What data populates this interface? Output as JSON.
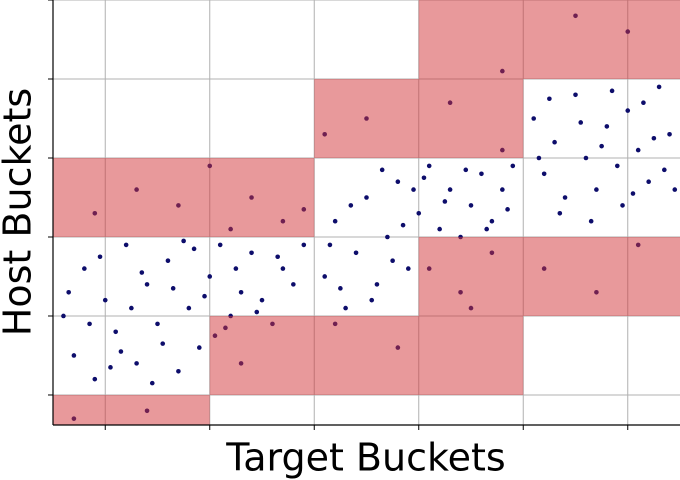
{
  "chart_data": {
    "type": "scatter",
    "xlabel": "Target Buckets",
    "ylabel": "Host Buckets",
    "xlim": [
      0,
      6
    ],
    "ylim": [
      -0.38,
      5
    ],
    "xticks": [
      0.5,
      1.5,
      2.5,
      3.5,
      4.5,
      5.5
    ],
    "yticks": [
      0,
      1,
      2,
      3,
      4,
      5
    ],
    "grid": true,
    "color": "#0d0d6b",
    "region_color": "#d13438",
    "region_opacity": 0.5,
    "regions": [
      {
        "x": [
          0,
          1.5
        ],
        "y": [
          -0.38,
          0
        ]
      },
      {
        "x": [
          1.5,
          4.5
        ],
        "y": [
          0,
          1
        ]
      },
      {
        "x": [
          0,
          2.5
        ],
        "y": [
          2,
          3
        ]
      },
      {
        "x": [
          3.5,
          6
        ],
        "y": [
          1,
          2
        ]
      },
      {
        "x": [
          2.5,
          4.5
        ],
        "y": [
          3,
          4
        ]
      },
      {
        "x": [
          3.5,
          6
        ],
        "y": [
          4,
          5
        ]
      }
    ],
    "x": [
      0.1,
      0.2,
      0.3,
      0.4,
      0.5,
      0.6,
      0.7,
      0.8,
      0.9,
      1.0,
      1.1,
      1.2,
      1.3,
      1.4,
      1.5,
      1.6,
      1.7,
      1.8,
      1.9,
      2.0,
      2.1,
      2.2,
      2.3,
      2.4,
      0.15,
      0.35,
      0.55,
      0.75,
      0.95,
      1.15,
      1.35,
      1.55,
      1.75,
      1.95,
      2.15,
      0.45,
      0.65,
      0.85,
      1.05,
      1.25,
      1.45,
      1.65,
      0.4,
      0.8,
      1.5,
      1.2,
      1.9,
      2.2,
      2.4,
      1.7,
      2.6,
      2.7,
      2.8,
      2.9,
      3.0,
      3.1,
      3.2,
      3.3,
      3.4,
      3.5,
      3.6,
      3.7,
      3.8,
      3.9,
      4.0,
      4.1,
      4.2,
      4.3,
      4.4,
      2.65,
      2.85,
      3.05,
      3.25,
      3.45,
      3.15,
      2.75,
      3.35,
      3.55,
      3.75,
      3.95,
      4.15,
      4.35,
      3.6,
      3.9,
      4.2,
      4.0,
      3.0,
      3.8,
      2.6,
      4.3,
      2.7,
      3.3,
      1.8,
      4.6,
      4.7,
      4.8,
      4.9,
      5.0,
      5.1,
      5.2,
      5.3,
      5.4,
      5.5,
      5.6,
      5.7,
      5.8,
      5.9,
      4.65,
      4.85,
      5.05,
      5.25,
      5.45,
      5.65,
      5.85,
      4.75,
      5.15,
      5.35,
      5.55,
      5.75,
      5.95,
      5.0,
      5.5,
      4.3,
      4.7,
      5.6,
      5.2,
      0.2,
      0.9
    ],
    "values": [
      1.0,
      0.5,
      1.6,
      0.2,
      1.2,
      0.8,
      1.9,
      0.4,
      1.4,
      0.9,
      1.7,
      0.3,
      1.1,
      0.6,
      1.5,
      1.9,
      1.0,
      1.3,
      1.8,
      1.2,
      0.9,
      1.6,
      1.4,
      1.9,
      1.3,
      0.9,
      0.35,
      1.1,
      0.15,
      1.35,
      1.85,
      0.75,
      1.6,
      1.05,
      1.75,
      1.75,
      0.55,
      1.55,
      0.65,
      1.95,
      1.25,
      0.85,
      2.3,
      2.6,
      2.9,
      2.4,
      2.5,
      2.2,
      2.35,
      2.1,
      1.5,
      2.2,
      1.1,
      1.8,
      2.5,
      1.4,
      2.0,
      2.7,
      1.6,
      2.3,
      2.9,
      2.1,
      2.6,
      2.0,
      2.4,
      2.8,
      2.2,
      2.6,
      2.9,
      1.9,
      2.4,
      1.2,
      1.7,
      2.6,
      2.85,
      1.35,
      2.15,
      2.75,
      2.45,
      2.85,
      2.1,
      2.35,
      1.6,
      1.3,
      1.8,
      1.1,
      3.5,
      3.7,
      3.3,
      3.1,
      0.9,
      0.6,
      0.4,
      3.5,
      2.8,
      3.2,
      2.5,
      3.8,
      3.0,
      2.6,
      3.4,
      2.9,
      3.6,
      3.1,
      2.7,
      3.9,
      3.3,
      3.0,
      2.3,
      3.45,
      3.15,
      2.4,
      3.7,
      2.85,
      3.75,
      2.2,
      3.85,
      2.55,
      3.25,
      2.6,
      4.8,
      4.6,
      4.1,
      1.6,
      1.9,
      1.3,
      -0.3,
      -0.2
    ]
  }
}
